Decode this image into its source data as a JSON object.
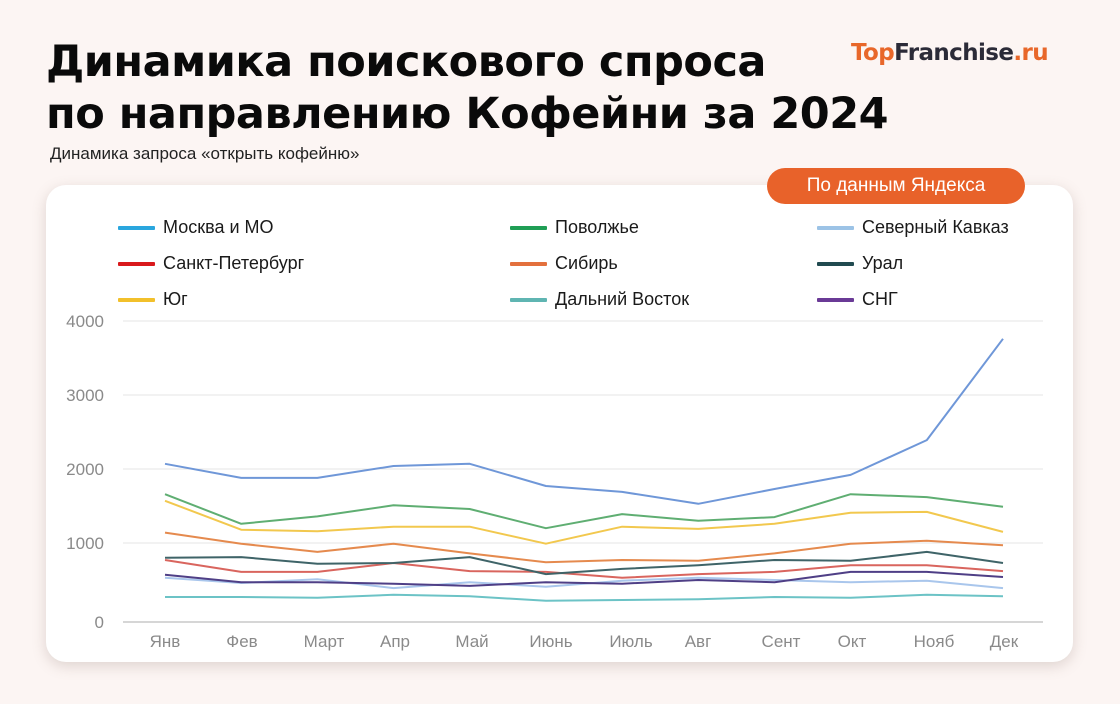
{
  "header": {
    "title_line1": "Динамика поискового спроса",
    "title_line2": "по направлению Кофейни за 2024",
    "subtitle": "Динамика запроса «открыть кофейню»",
    "logo": {
      "part1": "Top",
      "part2": "Franchise",
      "part3": ".ru"
    },
    "badge": "По данным Яндекса"
  },
  "colors": {
    "background": "#fcf5f3",
    "accent": "#e8622a",
    "grid": "#e6e6e6"
  },
  "chart_data": {
    "type": "line",
    "title": "Динамика запроса «открыть кофейню»",
    "xlabel": "",
    "ylabel": "",
    "ylim": [
      0,
      4000
    ],
    "yticks": [
      0,
      1000,
      2000,
      3000,
      4000
    ],
    "grid": true,
    "legend_position": "top",
    "categories": [
      "Янв",
      "Фев",
      "Март",
      "Апр",
      "Май",
      "Июнь",
      "Июль",
      "Авг",
      "Сент",
      "Окт",
      "Нояб",
      "Дек"
    ],
    "series": [
      {
        "name": "Москва и МО",
        "legend_color": "#2aa6de",
        "line_color": "#6f97d8",
        "values": [
          2070,
          1880,
          1880,
          2040,
          2070,
          1770,
          1690,
          1530,
          1730,
          1920,
          2390,
          3760
        ]
      },
      {
        "name": "Поволжье",
        "legend_color": "#1f9e55",
        "line_color": "#5fae72",
        "values": [
          1660,
          1260,
          1360,
          1510,
          1460,
          1200,
          1390,
          1300,
          1350,
          1660,
          1620,
          1490
        ]
      },
      {
        "name": "Северный Кавказ",
        "legend_color": "#9cc3e6",
        "line_color": "#a9c6ec",
        "values": [
          530,
          460,
          510,
          390,
          470,
          410,
          490,
          530,
          500,
          470,
          490,
          390
        ]
      },
      {
        "name": "Санкт-Петербург",
        "legend_color": "#d9191c",
        "line_color": "#d9655e",
        "values": [
          770,
          610,
          610,
          730,
          620,
          610,
          530,
          580,
          610,
          700,
          700,
          620
        ]
      },
      {
        "name": "Сибирь",
        "legend_color": "#e3703d",
        "line_color": "#e58a4e",
        "values": [
          1140,
          990,
          880,
          990,
          860,
          740,
          770,
          760,
          860,
          990,
          1030,
          970
        ]
      },
      {
        "name": "Урал",
        "legend_color": "#214a50",
        "line_color": "#3f6468",
        "values": [
          800,
          810,
          720,
          730,
          810,
          580,
          650,
          700,
          770,
          760,
          880,
          730
        ]
      },
      {
        "name": "Юг",
        "legend_color": "#f2c02b",
        "line_color": "#f2c84e",
        "values": [
          1570,
          1180,
          1160,
          1220,
          1220,
          990,
          1220,
          1190,
          1260,
          1410,
          1420,
          1150
        ]
      },
      {
        "name": "Дальний Восток",
        "legend_color": "#5fb5b2",
        "line_color": "#6cc3c6",
        "values": [
          270,
          270,
          260,
          300,
          280,
          220,
          230,
          240,
          270,
          260,
          300,
          280
        ]
      },
      {
        "name": "СНГ",
        "legend_color": "#6a3a96",
        "line_color": "#4f3f86",
        "values": [
          570,
          470,
          470,
          450,
          420,
          470,
          450,
          500,
          470,
          610,
          610,
          540
        ]
      }
    ]
  }
}
